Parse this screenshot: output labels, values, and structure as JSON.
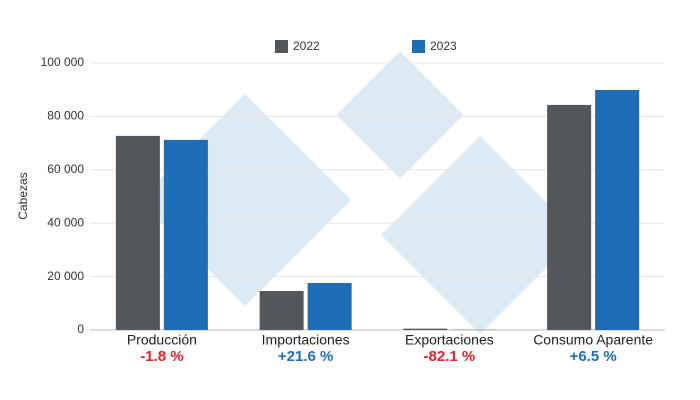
{
  "chart_data": {
    "type": "bar",
    "y_label": "Cabezas",
    "categories": [
      "Producción",
      "Importaciones",
      "Exportaciones",
      "Consumo Aparente"
    ],
    "series": [
      {
        "name": "2022",
        "color": "#53565a",
        "values": [
          72700,
          14600,
          500,
          84300
        ]
      },
      {
        "name": "2023",
        "color": "#1f6db5",
        "values": [
          71200,
          17600,
          90,
          89900
        ]
      }
    ],
    "annotations": [
      "-1.8 %",
      "+21.6 %",
      "-82.1 %",
      "+6.5 %"
    ],
    "annotation_colors": [
      "#e8202a",
      "#1f6db5",
      "#e8202a",
      "#1f6db5"
    ],
    "ylim": [
      0,
      100000
    ],
    "yticks": [
      0,
      {
        "value": 20000,
        "label": "20 000"
      },
      {
        "value": 40000,
        "label": "40 000"
      },
      {
        "value": 60000,
        "label": "60 000"
      },
      {
        "value": 80000,
        "label": "80 000"
      },
      {
        "value": 100000,
        "label": "100 000"
      }
    ],
    "grid": true
  }
}
